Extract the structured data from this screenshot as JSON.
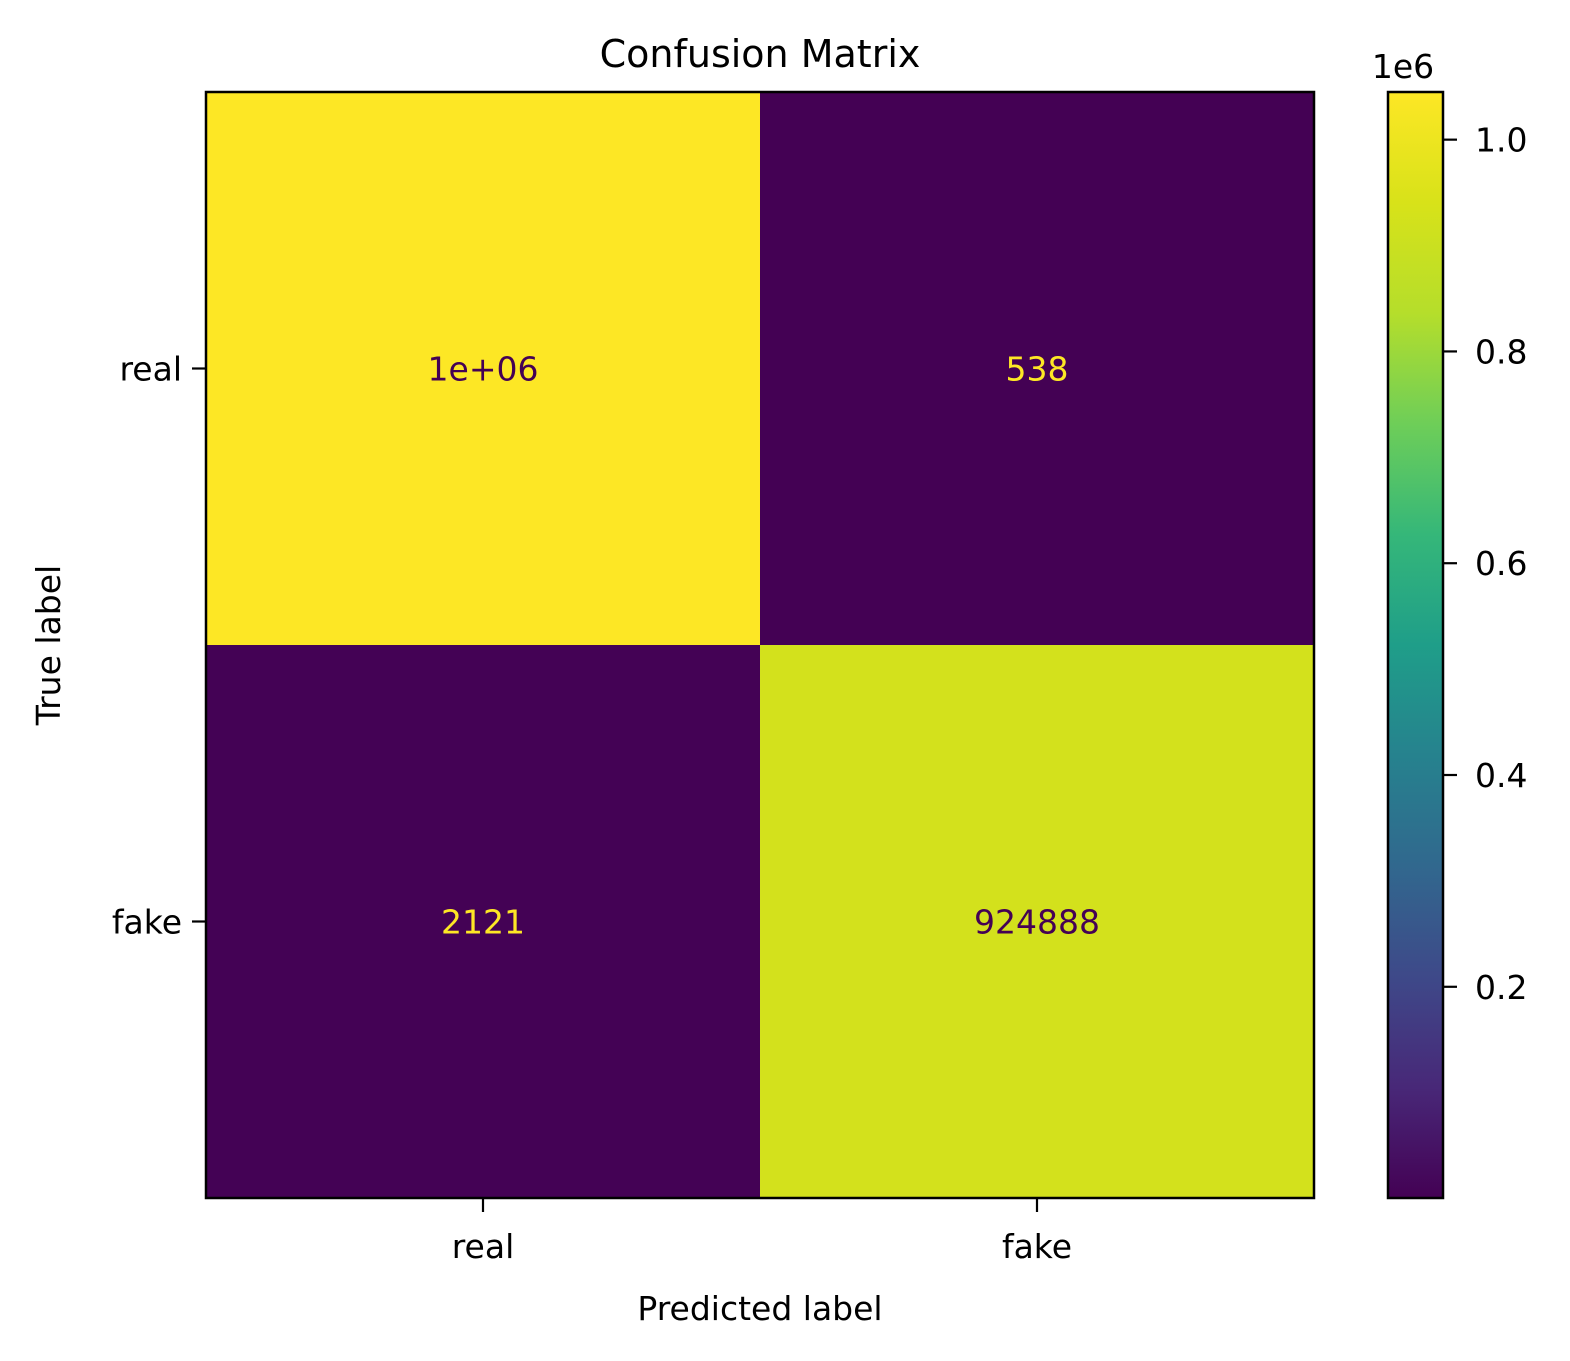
{
  "chart_data": {
    "type": "heatmap",
    "title": "Confusion Matrix",
    "xlabel": "Predicted label",
    "ylabel": "True label",
    "x_categories": [
      "real",
      "fake"
    ],
    "y_categories": [
      "real",
      "fake"
    ],
    "values": [
      [
        1045000,
        538
      ],
      [
        2121,
        924888
      ]
    ],
    "cell_labels": [
      [
        "1e+06",
        "538"
      ],
      [
        "2121",
        "924888"
      ]
    ],
    "colormap": "viridis",
    "colorbar": {
      "multiplier_label": "1e6",
      "ticks": [
        0.2,
        0.4,
        0.6,
        0.8,
        1.0
      ],
      "tick_labels": [
        "0.2",
        "0.4",
        "0.6",
        "0.8",
        "1.0"
      ],
      "range": [
        538,
        1045000
      ]
    },
    "text_colors": {
      "on_dark": "#fde725",
      "on_light": "#440154"
    },
    "grid": false
  }
}
